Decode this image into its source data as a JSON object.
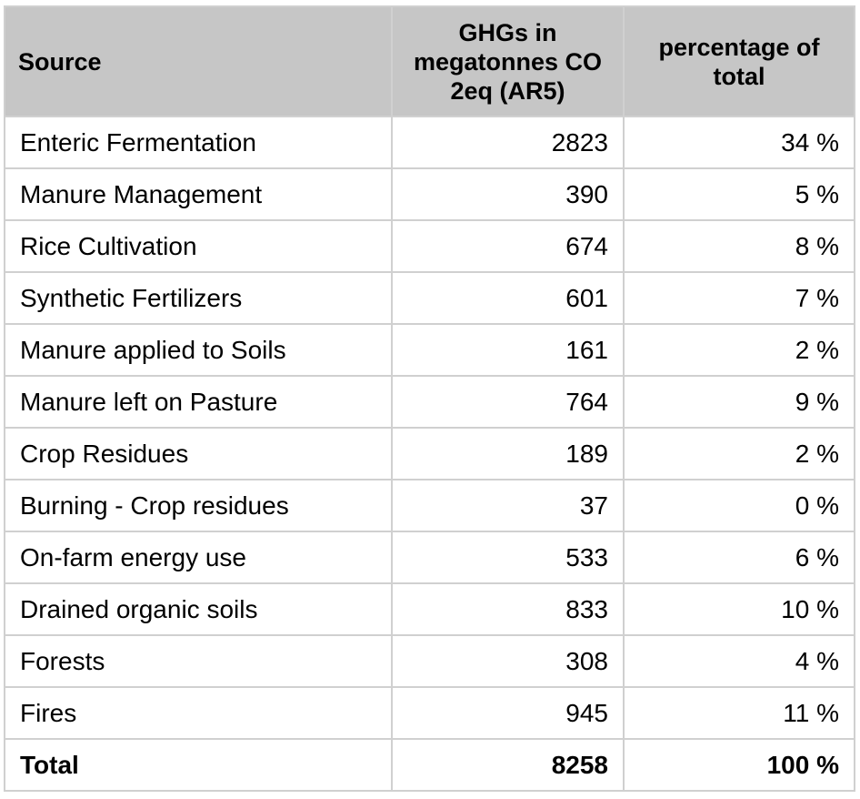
{
  "chart_data": {
    "type": "table",
    "columns": [
      "Source",
      "GHGs in megatonnes CO 2eq (AR5)",
      "percentage of total"
    ],
    "rows": [
      {
        "source": "Enteric Fermentation",
        "value": "2823",
        "percent": "34 %"
      },
      {
        "source": "Manure Management",
        "value": "390",
        "percent": "5 %"
      },
      {
        "source": "Rice Cultivation",
        "value": "674",
        "percent": "8 %"
      },
      {
        "source": "Synthetic Fertilizers",
        "value": "601",
        "percent": "7 %"
      },
      {
        "source": "Manure applied to Soils",
        "value": "161",
        "percent": "2 %"
      },
      {
        "source": "Manure left on Pasture",
        "value": "764",
        "percent": "9 %"
      },
      {
        "source": "Crop Residues",
        "value": "189",
        "percent": "2 %"
      },
      {
        "source": "Burning - Crop residues",
        "value": "37",
        "percent": "0 %"
      },
      {
        "source": "On-farm energy use",
        "value": "533",
        "percent": "6 %"
      },
      {
        "source": "Drained organic soils",
        "value": "833",
        "percent": "10 %"
      },
      {
        "source": "Forests",
        "value": "308",
        "percent": "4 %"
      },
      {
        "source": "Fires",
        "value": "945",
        "percent": "11 %"
      }
    ],
    "total": {
      "source": "Total",
      "value": "8258",
      "percent": "100 %"
    }
  },
  "colors": {
    "header_bg": "#c6c6c6",
    "grid": "#d0d0d0"
  }
}
